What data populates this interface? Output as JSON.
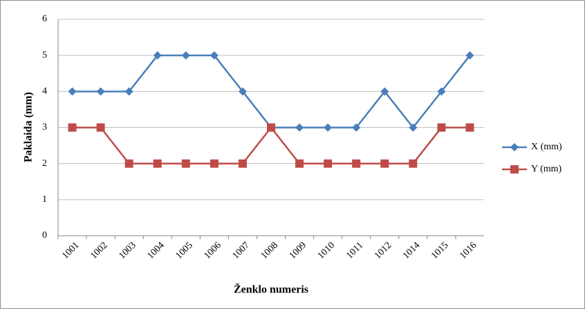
{
  "chart_data": {
    "type": "line",
    "ylabel": "Paklaida (mm)",
    "xlabel": "Ženklo numeris",
    "categories": [
      "1001",
      "1002",
      "1003",
      "1004",
      "1005",
      "1006",
      "1007",
      "1008",
      "1009",
      "1010",
      "1011",
      "1012",
      "1014",
      "1015",
      "1016"
    ],
    "series": [
      {
        "name": "X (mm)",
        "color": "#4a7ebb",
        "marker": "diamond",
        "values": [
          4,
          4,
          4,
          5,
          5,
          5,
          4,
          3,
          3,
          3,
          3,
          4,
          3,
          4,
          5
        ]
      },
      {
        "name": "Y (mm)",
        "color": "#be4b48",
        "marker": "square",
        "values": [
          3,
          3,
          2,
          2,
          2,
          2,
          2,
          3,
          2,
          2,
          2,
          2,
          2,
          3,
          3
        ]
      }
    ],
    "ylim": [
      0,
      6
    ],
    "yticks": [
      0,
      1,
      2,
      3,
      4,
      5,
      6
    ],
    "grid": true,
    "legend": "right"
  }
}
